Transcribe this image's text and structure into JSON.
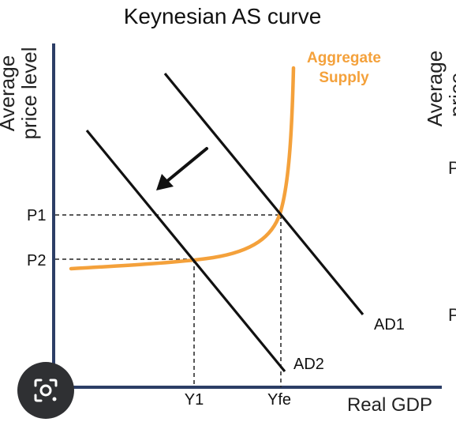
{
  "title": "Keynesian AS curve",
  "axes": {
    "y_label_line1": "Average",
    "y_label_line2": "price level",
    "x_label": "Real GDP"
  },
  "ticks": {
    "p1": "P1",
    "p2": "P2",
    "y1": "Y1",
    "yfe": "Yfe"
  },
  "curves": {
    "as_line1": "Aggregate",
    "as_line2": "Supply",
    "ad1": "AD1",
    "ad2": "AD2"
  },
  "right_fragment": {
    "line1": "Average",
    "line2": "price",
    "tick_a": "P",
    "tick_b": "P"
  },
  "colors": {
    "as_curve": "#f4a13b",
    "axis": "#2c3e66",
    "ink": "#111111",
    "lens_button": "#2f3033"
  },
  "icons": {
    "lens": "lens-search-icon"
  }
}
